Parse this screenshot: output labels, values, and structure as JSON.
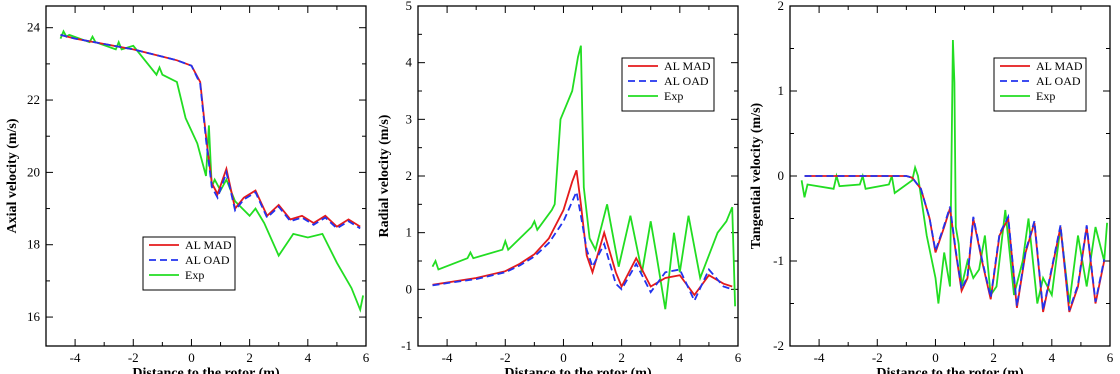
{
  "chart_data": [
    {
      "type": "line",
      "xlabel": "Distance to the rotor (m)",
      "ylabel": "Axial velocity (m/s)",
      "xlim": [
        -5,
        6
      ],
      "ylim": [
        15.2,
        24.6
      ],
      "xticks": [
        -4,
        -2,
        0,
        2,
        4,
        6
      ],
      "yticks": [
        16,
        18,
        20,
        22,
        24
      ],
      "legend_position": "bottom-center",
      "series": [
        {
          "name": "AL MAD",
          "color": "#e41a1c",
          "dash": "solid",
          "x": [
            -4.5,
            -4,
            -3,
            -2,
            -1,
            -0.5,
            0,
            0.3,
            0.5,
            0.7,
            0.9,
            1.2,
            1.5,
            1.8,
            2.2,
            2.6,
            3.0,
            3.4,
            3.8,
            4.2,
            4.6,
            5.0,
            5.4,
            5.8
          ],
          "y": [
            23.8,
            23.7,
            23.55,
            23.4,
            23.2,
            23.1,
            22.95,
            22.5,
            21.0,
            19.7,
            19.4,
            20.1,
            19.0,
            19.3,
            19.5,
            18.8,
            19.1,
            18.7,
            18.8,
            18.6,
            18.8,
            18.5,
            18.7,
            18.5
          ]
        },
        {
          "name": "AL OAD",
          "color": "#2233ee",
          "dash": "dashed",
          "x": [
            -4.5,
            -4,
            -3,
            -2,
            -1,
            -0.5,
            0,
            0.3,
            0.5,
            0.7,
            0.9,
            1.2,
            1.5,
            1.8,
            2.2,
            2.6,
            3.0,
            3.4,
            3.8,
            4.2,
            4.6,
            5.0,
            5.4,
            5.8
          ],
          "y": [
            23.8,
            23.7,
            23.55,
            23.4,
            23.2,
            23.1,
            22.95,
            22.45,
            20.9,
            19.6,
            19.3,
            20.0,
            18.95,
            19.25,
            19.45,
            18.75,
            19.05,
            18.65,
            18.75,
            18.55,
            18.75,
            18.45,
            18.65,
            18.45
          ]
        },
        {
          "name": "Exp",
          "color": "#22dd22",
          "dash": "solid",
          "x": [
            -4.5,
            -4.4,
            -4.3,
            -4.2,
            -3.5,
            -3.4,
            -3.3,
            -2.6,
            -2.5,
            -2.4,
            -2.0,
            -1.2,
            -1.1,
            -1.0,
            -0.5,
            -0.2,
            0.2,
            0.5,
            0.6,
            0.7,
            0.8,
            1.0,
            1.2,
            1.5,
            2.0,
            2.2,
            2.5,
            3.0,
            3.5,
            4.0,
            4.5,
            5.0,
            5.5,
            5.8,
            5.9
          ],
          "y": [
            23.7,
            23.9,
            23.75,
            23.8,
            23.6,
            23.75,
            23.6,
            23.4,
            23.6,
            23.4,
            23.5,
            22.7,
            22.9,
            22.7,
            22.5,
            21.5,
            20.8,
            19.9,
            21.3,
            19.6,
            19.8,
            19.5,
            19.8,
            19.2,
            18.8,
            19.0,
            18.6,
            17.7,
            18.3,
            18.2,
            18.3,
            17.5,
            16.8,
            16.2,
            16.6
          ]
        }
      ]
    },
    {
      "type": "line",
      "xlabel": "Distance to the rotor (m)",
      "ylabel": "Radial velocity (m/s)",
      "xlim": [
        -5,
        6
      ],
      "ylim": [
        -1,
        5
      ],
      "xticks": [
        -4,
        -2,
        0,
        2,
        4,
        6
      ],
      "yticks": [
        -1,
        0,
        1,
        2,
        3,
        4,
        5
      ],
      "legend_position": "top-right",
      "series": [
        {
          "name": "AL MAD",
          "color": "#e41a1c",
          "dash": "solid",
          "x": [
            -4.5,
            -4,
            -3,
            -2,
            -1.5,
            -1,
            -0.5,
            0,
            0.3,
            0.45,
            0.6,
            0.8,
            1.0,
            1.4,
            1.8,
            2.0,
            2.5,
            3.0,
            3.5,
            4.0,
            4.5,
            5.0,
            5.5,
            5.8
          ],
          "y": [
            0.08,
            0.12,
            0.2,
            0.32,
            0.45,
            0.62,
            0.9,
            1.4,
            1.9,
            2.1,
            1.5,
            0.6,
            0.3,
            1.0,
            0.3,
            0.05,
            0.55,
            0.05,
            0.2,
            0.25,
            -0.1,
            0.25,
            0.1,
            0.05
          ]
        },
        {
          "name": "AL OAD",
          "color": "#2233ee",
          "dash": "dashed",
          "x": [
            -4.5,
            -4,
            -3,
            -2,
            -1.5,
            -1,
            -0.5,
            0,
            0.3,
            0.45,
            0.6,
            0.8,
            1.0,
            1.4,
            1.8,
            2.0,
            2.5,
            3.0,
            3.5,
            4.0,
            4.5,
            5.0,
            5.5,
            5.8
          ],
          "y": [
            0.07,
            0.11,
            0.18,
            0.3,
            0.42,
            0.58,
            0.82,
            1.2,
            1.55,
            1.72,
            1.3,
            0.7,
            0.4,
            0.8,
            0.1,
            0.0,
            0.45,
            -0.05,
            0.3,
            0.35,
            -0.2,
            0.35,
            0.05,
            0.0
          ]
        },
        {
          "name": "Exp",
          "color": "#22dd22",
          "dash": "solid",
          "x": [
            -4.5,
            -4.4,
            -4.3,
            -3.3,
            -3.2,
            -3.1,
            -2.1,
            -2.0,
            -1.9,
            -1.1,
            -1.0,
            -0.9,
            -0.4,
            -0.3,
            -0.1,
            0.3,
            0.5,
            0.6,
            0.7,
            0.9,
            1.1,
            1.5,
            1.9,
            2.3,
            2.7,
            3.0,
            3.2,
            3.5,
            3.8,
            4.0,
            4.3,
            4.7,
            5.0,
            5.3,
            5.6,
            5.8,
            5.9
          ],
          "y": [
            0.4,
            0.5,
            0.35,
            0.55,
            0.65,
            0.55,
            0.7,
            0.85,
            0.7,
            1.1,
            1.2,
            1.05,
            1.4,
            1.5,
            3.0,
            3.5,
            4.1,
            4.3,
            1.8,
            0.9,
            0.7,
            1.5,
            0.4,
            1.3,
            0.3,
            1.2,
            0.6,
            -0.35,
            1.0,
            0.3,
            1.3,
            0.2,
            0.6,
            1.0,
            1.2,
            1.45,
            -0.3
          ]
        }
      ]
    },
    {
      "type": "line",
      "xlabel": "Distance to the rotor (m)",
      "ylabel": "Tangential velocity (m/s)",
      "xlim": [
        -5,
        6
      ],
      "ylim": [
        -2,
        2
      ],
      "xticks": [
        -4,
        -2,
        0,
        2,
        4,
        6
      ],
      "yticks": [
        -2,
        -1,
        0,
        1,
        2
      ],
      "legend_position": "top-right",
      "series": [
        {
          "name": "AL MAD",
          "color": "#e41a1c",
          "dash": "solid",
          "x": [
            -4.5,
            -3,
            -1.5,
            -1.0,
            -0.8,
            -0.5,
            -0.2,
            0.0,
            0.3,
            0.5,
            0.7,
            0.9,
            1.1,
            1.3,
            1.6,
            1.9,
            2.2,
            2.5,
            2.8,
            3.1,
            3.4,
            3.7,
            4.0,
            4.3,
            4.6,
            4.9,
            5.2,
            5.5,
            5.8
          ],
          "y": [
            0,
            0,
            0,
            0,
            -0.02,
            -0.15,
            -0.5,
            -0.9,
            -0.6,
            -0.38,
            -0.9,
            -1.35,
            -1.2,
            -0.5,
            -1.0,
            -1.45,
            -0.7,
            -0.5,
            -1.55,
            -0.9,
            -0.55,
            -1.6,
            -1.1,
            -0.6,
            -1.6,
            -1.3,
            -0.6,
            -1.5,
            -1.0
          ]
        },
        {
          "name": "AL OAD",
          "color": "#2233ee",
          "dash": "dashed",
          "x": [
            -4.5,
            -3,
            -1.5,
            -1.0,
            -0.8,
            -0.5,
            -0.2,
            0.0,
            0.3,
            0.5,
            0.7,
            0.9,
            1.1,
            1.3,
            1.6,
            1.9,
            2.2,
            2.5,
            2.8,
            3.1,
            3.4,
            3.7,
            4.0,
            4.3,
            4.6,
            4.9,
            5.2,
            5.5,
            5.8
          ],
          "y": [
            0,
            0,
            0,
            0,
            -0.02,
            -0.15,
            -0.5,
            -0.88,
            -0.58,
            -0.36,
            -0.88,
            -1.33,
            -1.18,
            -0.48,
            -0.98,
            -1.43,
            -0.68,
            -0.48,
            -1.53,
            -0.88,
            -0.53,
            -1.58,
            -1.08,
            -0.58,
            -1.58,
            -1.28,
            -0.58,
            -1.48,
            -0.98
          ]
        },
        {
          "name": "Exp",
          "color": "#22dd22",
          "dash": "solid",
          "x": [
            -4.6,
            -4.5,
            -4.4,
            -3.5,
            -3.4,
            -3.3,
            -2.6,
            -2.5,
            -2.4,
            -1.6,
            -1.5,
            -1.4,
            -0.8,
            -0.7,
            -0.6,
            -0.3,
            0.0,
            0.1,
            0.3,
            0.5,
            0.6,
            0.65,
            0.7,
            0.8,
            0.9,
            1.1,
            1.3,
            1.5,
            1.7,
            1.9,
            2.1,
            2.4,
            2.7,
            3.0,
            3.2,
            3.5,
            3.7,
            4.0,
            4.3,
            4.6,
            4.9,
            5.2,
            5.5,
            5.8,
            5.9
          ],
          "y": [
            -0.05,
            -0.25,
            -0.1,
            -0.15,
            0.0,
            -0.12,
            -0.1,
            0.0,
            -0.15,
            -0.1,
            0.0,
            -0.2,
            -0.05,
            0.1,
            0.0,
            -0.7,
            -1.2,
            -1.5,
            -0.9,
            -1.3,
            1.6,
            1.1,
            -0.6,
            -0.8,
            -1.3,
            -1.0,
            -1.2,
            -1.1,
            -0.7,
            -1.4,
            -1.3,
            -0.4,
            -1.4,
            -1.0,
            -0.5,
            -1.5,
            -1.2,
            -1.4,
            -0.6,
            -1.5,
            -0.7,
            -1.3,
            -0.6,
            -1.0,
            -0.55
          ]
        }
      ]
    }
  ]
}
